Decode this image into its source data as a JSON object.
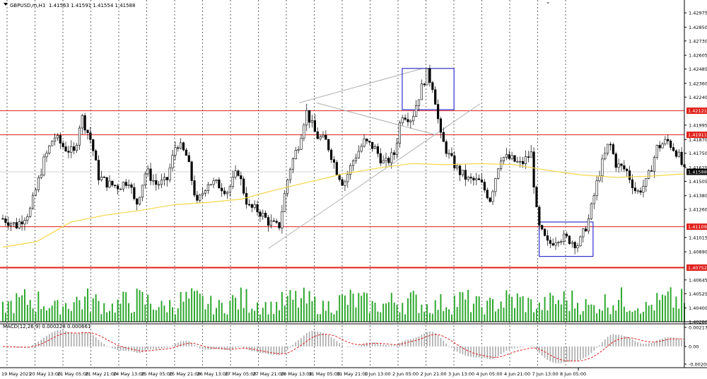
{
  "header": {
    "symbol": "GBPUSD,m,H1",
    "ohlc": "1.41563 1.41591 1.41554 1.41588"
  },
  "indicator": {
    "title": "MACD(12,26,9) 0.000228 0.000661",
    "ticks": [
      "0.002175",
      "0.00",
      "-0.002008"
    ]
  },
  "colors": {
    "bull": "#000000",
    "bear": "#000000",
    "ma": "#f5d547",
    "hline": "#e0201a",
    "label_bg": "#e0201a",
    "box": "#3333cc",
    "volume": "#2ea82e",
    "macd_hist": "#a9a9a9",
    "macd_signal": "#e02020",
    "trend": "#b0b0b0",
    "price_label_bg": "#000000"
  },
  "chart_data": {
    "type": "candlestick",
    "x_labels": [
      "19 May 2021",
      "20 May 13:00",
      "21 May 05:00",
      "21 May 21:00",
      "24 May 13:00",
      "25 May 05:00",
      "25 May 21:00",
      "26 May 13:00",
      "27 May 05:00",
      "27 May 21:00",
      "28 May 13:00",
      "31 May 05:00",
      "31 May 21:00",
      "1 Jun 13:00",
      "2 Jun 05:00",
      "2 Jun 21:00",
      "3 Jun 13:00",
      "4 Jun 05:00",
      "4 Jun 21:00",
      "7 Jun 13:00",
      "8 Jun 05:00"
    ],
    "y_ticks": [
      "1.42975",
      "1.42850",
      "1.42730",
      "1.42605",
      "1.42485",
      "1.42360",
      "1.42240",
      "1.42121",
      "1.41995",
      "1.41911",
      "1.41870",
      "1.41750",
      "1.41625",
      "1.41588",
      "1.41505",
      "1.41380",
      "1.41260",
      "1.41109",
      "1.41015",
      "1.40890",
      "1.40752",
      "1.40645",
      "1.40525",
      "1.40400",
      "1.40280"
    ],
    "price_range": [
      1.4028,
      1.4305
    ],
    "horizontal_levels": [
      {
        "label": "1.42121",
        "value": 1.42121
      },
      {
        "label": "1.41911",
        "value": 1.41911
      },
      {
        "label": "1.41109",
        "value": 1.41109
      },
      {
        "label": "1.40752",
        "value": 1.40752
      }
    ],
    "current_price": {
      "label": "1.41588",
      "value": 1.41588
    },
    "boxes": [
      {
        "t0": 0.586,
        "t1": 0.662,
        "top": 1.4249,
        "bottom": 1.4213
      },
      {
        "t0": 0.787,
        "t1": 0.866,
        "top": 1.4115,
        "bottom": 1.4085
      }
    ],
    "trendlines": [
      {
        "t0": 0.39,
        "p0": 1.4092,
        "t1": 0.7,
        "p1": 1.4218
      },
      {
        "t0": 0.435,
        "p0": 1.4219,
        "t1": 0.616,
        "p1": 1.4249
      },
      {
        "t0": 0.46,
        "p0": 1.4219,
        "t1": 0.635,
        "p1": 1.4191
      }
    ],
    "close_path": [
      [
        0.0,
        1.4118
      ],
      [
        0.02,
        1.4112
      ],
      [
        0.04,
        1.4125
      ],
      [
        0.06,
        1.4168
      ],
      [
        0.075,
        1.419
      ],
      [
        0.09,
        1.418
      ],
      [
        0.105,
        1.4175
      ],
      [
        0.115,
        1.4208
      ],
      [
        0.13,
        1.4185
      ],
      [
        0.14,
        1.4155
      ],
      [
        0.155,
        1.4148
      ],
      [
        0.17,
        1.4146
      ],
      [
        0.185,
        1.4152
      ],
      [
        0.195,
        1.4128
      ],
      [
        0.21,
        1.416
      ],
      [
        0.225,
        1.4148
      ],
      [
        0.24,
        1.415
      ],
      [
        0.255,
        1.4185
      ],
      [
        0.27,
        1.4172
      ],
      [
        0.285,
        1.413
      ],
      [
        0.3,
        1.415
      ],
      [
        0.315,
        1.4148
      ],
      [
        0.33,
        1.4142
      ],
      [
        0.345,
        1.416
      ],
      [
        0.36,
        1.4128
      ],
      [
        0.375,
        1.4125
      ],
      [
        0.39,
        1.4115
      ],
      [
        0.405,
        1.411
      ],
      [
        0.42,
        1.416
      ],
      [
        0.435,
        1.4185
      ],
      [
        0.445,
        1.4212
      ],
      [
        0.46,
        1.419
      ],
      [
        0.475,
        1.4185
      ],
      [
        0.49,
        1.416
      ],
      [
        0.5,
        1.4148
      ],
      [
        0.515,
        1.417
      ],
      [
        0.53,
        1.4185
      ],
      [
        0.545,
        1.418
      ],
      [
        0.56,
        1.4165
      ],
      [
        0.575,
        1.4175
      ],
      [
        0.585,
        1.421
      ],
      [
        0.6,
        1.4205
      ],
      [
        0.612,
        1.4228
      ],
      [
        0.622,
        1.4245
      ],
      [
        0.632,
        1.4232
      ],
      [
        0.642,
        1.419
      ],
      [
        0.655,
        1.4172
      ],
      [
        0.668,
        1.416
      ],
      [
        0.682,
        1.4152
      ],
      [
        0.7,
        1.415
      ],
      [
        0.715,
        1.4135
      ],
      [
        0.73,
        1.4172
      ],
      [
        0.745,
        1.417
      ],
      [
        0.76,
        1.4165
      ],
      [
        0.775,
        1.4175
      ],
      [
        0.785,
        1.4112
      ],
      [
        0.8,
        1.4095
      ],
      [
        0.815,
        1.4102
      ],
      [
        0.83,
        1.41
      ],
      [
        0.845,
        1.4095
      ],
      [
        0.86,
        1.4118
      ],
      [
        0.875,
        1.4158
      ],
      [
        0.89,
        1.4185
      ],
      [
        0.9,
        1.4165
      ],
      [
        0.915,
        1.416
      ],
      [
        0.93,
        1.414
      ],
      [
        0.945,
        1.415
      ],
      [
        0.96,
        1.418
      ],
      [
        0.975,
        1.4186
      ],
      [
        0.99,
        1.4175
      ],
      [
        1.0,
        1.41588
      ]
    ],
    "ma_path": [
      [
        0.0,
        1.4093
      ],
      [
        0.05,
        1.4098
      ],
      [
        0.1,
        1.4115
      ],
      [
        0.15,
        1.4121
      ],
      [
        0.2,
        1.4125
      ],
      [
        0.25,
        1.413
      ],
      [
        0.3,
        1.4132
      ],
      [
        0.35,
        1.4135
      ],
      [
        0.4,
        1.4143
      ],
      [
        0.45,
        1.415
      ],
      [
        0.5,
        1.4157
      ],
      [
        0.55,
        1.4162
      ],
      [
        0.6,
        1.4166
      ],
      [
        0.65,
        1.4165
      ],
      [
        0.7,
        1.4166
      ],
      [
        0.75,
        1.4165
      ],
      [
        0.8,
        1.416
      ],
      [
        0.85,
        1.4156
      ],
      [
        0.9,
        1.4154
      ],
      [
        0.95,
        1.4155
      ],
      [
        1.0,
        1.4157
      ]
    ],
    "macd_range": [
      -0.002008,
      0.002175
    ]
  }
}
